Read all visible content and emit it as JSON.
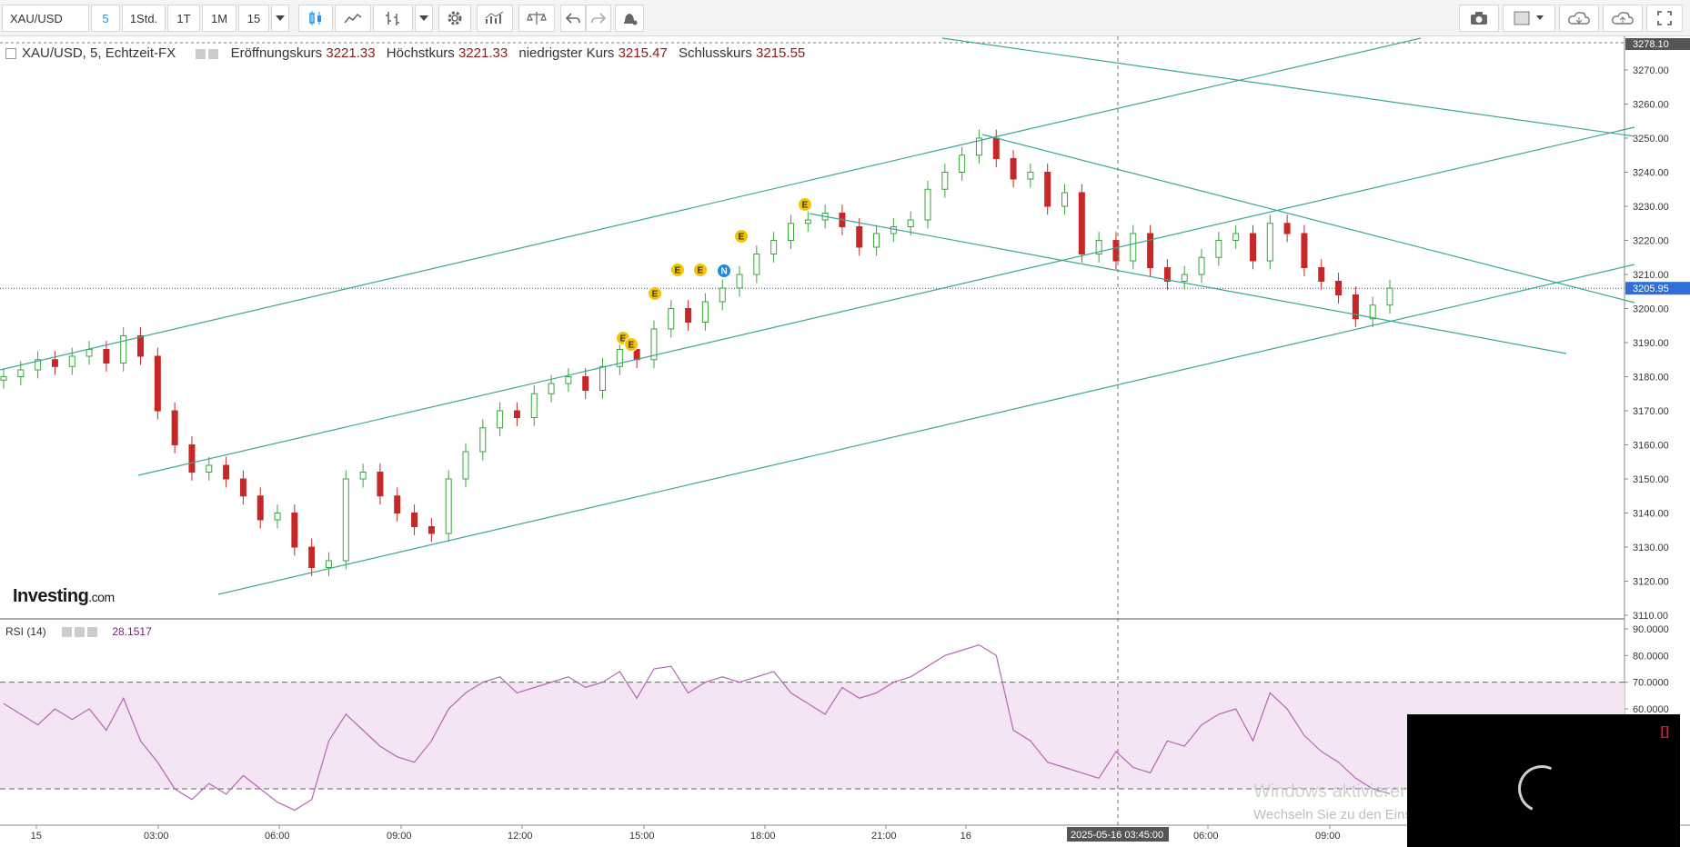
{
  "toolbar": {
    "symbol": "XAU/USD",
    "intervals": [
      "5",
      "1Std.",
      "1T",
      "1M",
      "15"
    ],
    "active_interval": "5"
  },
  "legend": {
    "title": "XAU/USD, 5, Echtzeit-FX",
    "open_label": "Eröffnungskurs",
    "open": "3221.33",
    "high_label": "Höchstkurs",
    "high": "3221.33",
    "low_label": "niedrigster Kurs",
    "low": "3215.47",
    "close_label": "Schlusskurs",
    "close": "3215.55"
  },
  "rsi": {
    "label": "RSI (14)",
    "value": "28.1517"
  },
  "logo": {
    "brand": "Investing",
    "suffix": ".com"
  },
  "price_axis": {
    "ticks": [
      "3270.00",
      "3260.00",
      "3250.00",
      "3240.00",
      "3230.00",
      "3220.00",
      "3210.00",
      "3200.00",
      "3190.00",
      "3180.00",
      "3170.00",
      "3160.00",
      "3150.00",
      "3140.00",
      "3130.00",
      "3120.00",
      "3110.00"
    ],
    "top_marker": "3278.10",
    "current_marker": "3205.95"
  },
  "rsi_axis": {
    "ticks": [
      "90.0000",
      "80.0000",
      "70.0000",
      "60.0000"
    ]
  },
  "time_axis": {
    "labels": [
      "15",
      "03:00",
      "06:00",
      "09:00",
      "12:00",
      "15:00",
      "18:00",
      "21:00",
      "16",
      "06:00",
      "09:00"
    ],
    "crosshair_label": "2025-05-16 03:45:00"
  },
  "markers": [
    "E",
    "E",
    "E",
    "E",
    "E",
    "N",
    "E",
    "E"
  ],
  "windows_watermark": {
    "title": "Windows aktivieren",
    "subtitle": "Wechseln Sie zu den Einstellungen, um Windows zu aktivieren."
  },
  "colors": {
    "up": "#3aa53a",
    "down": "#c62828",
    "trendline": "#3aa795",
    "rsi_line": "#b565b5",
    "rsi_band": "#f3e5f3",
    "accent": "#2196f3"
  },
  "chart_data": {
    "type": "candlestick",
    "price_range": [
      3110,
      3278.1
    ],
    "rsi_range": [
      0,
      90
    ],
    "x_labels": [
      "15",
      "03:00",
      "06:00",
      "09:00",
      "12:00",
      "15:00",
      "18:00",
      "21:00",
      "16",
      "06:00",
      "09:00"
    ],
    "closes": [
      3180,
      3182,
      3185,
      3183,
      3186,
      3188,
      3184,
      3192,
      3186,
      3170,
      3160,
      3152,
      3154,
      3150,
      3145,
      3138,
      3140,
      3130,
      3124,
      3126,
      3150,
      3152,
      3145,
      3140,
      3136,
      3134,
      3150,
      3158,
      3165,
      3170,
      3168,
      3175,
      3178,
      3180,
      3176,
      3183,
      3188,
      3185,
      3194,
      3200,
      3196,
      3202,
      3206,
      3210,
      3216,
      3220,
      3225,
      3226,
      3228,
      3224,
      3218,
      3222,
      3224,
      3226,
      3235,
      3240,
      3245,
      3250,
      3244,
      3238,
      3240,
      3230,
      3234,
      3216,
      3220,
      3214,
      3222,
      3212,
      3208,
      3210,
      3215,
      3220,
      3222,
      3214,
      3225,
      3222,
      3212,
      3208,
      3204,
      3197,
      3201,
      3205.95
    ],
    "rsi": [
      62,
      58,
      54,
      60,
      56,
      60,
      52,
      64,
      48,
      40,
      30,
      26,
      32,
      28,
      35,
      30,
      25,
      22,
      26,
      48,
      58,
      52,
      46,
      42,
      40,
      48,
      60,
      66,
      70,
      72,
      66,
      68,
      70,
      72,
      68,
      70,
      74,
      64,
      75,
      76,
      66,
      70,
      72,
      70,
      72,
      74,
      66,
      62,
      58,
      68,
      64,
      66,
      70,
      72,
      76,
      80,
      82,
      84,
      80,
      52,
      48,
      40,
      38,
      36,
      34,
      44,
      38,
      36,
      48,
      46,
      54,
      58,
      60,
      48,
      66,
      60,
      50,
      44,
      40,
      34,
      30,
      28.15
    ]
  }
}
